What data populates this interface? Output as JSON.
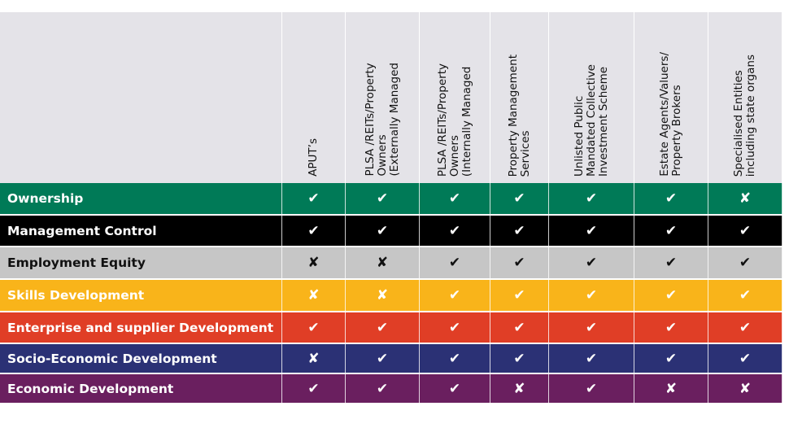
{
  "columns": [
    "APUT’s",
    "PLSA /REITs/Property\nOwners\n(Externally Managed",
    "PLSA /REITs/Property\nOwners\n(Internally Managed",
    "Property Management\nServices",
    "Unlisted Public\nMandated Collective\nInvestment Scheme",
    "Estate Agents/Valuers/\nProperty Brokers",
    "Specialised Entities\nincluding state organs"
  ],
  "rows": [
    {
      "label": "Ownership",
      "bg": "#007a57",
      "fg": "#ffffff",
      "marks": [
        "✔",
        "✔",
        "✔",
        "✔",
        "✔",
        "✔",
        "✘"
      ]
    },
    {
      "label": "Management Control",
      "bg": "#000000",
      "fg": "#ffffff",
      "marks": [
        "✔",
        "✔",
        "✔",
        "✔",
        "✔",
        "✔",
        "✔"
      ]
    },
    {
      "label": "Employment Equity",
      "bg": "#c6c6c6",
      "fg": "#111111",
      "marks": [
        "✘",
        "✘",
        "✔",
        "✔",
        "✔",
        "✔",
        "✔"
      ]
    },
    {
      "label": "Skills Development",
      "bg": "#f9b41a",
      "fg": "#ffffff",
      "marks": [
        "✘",
        "✘",
        "✔",
        "✔",
        "✔",
        "✔",
        "✔"
      ]
    },
    {
      "label": "Enterprise and supplier Development",
      "bg": "#e03e26",
      "fg": "#ffffff",
      "marks": [
        "✔",
        "✔",
        "✔",
        "✔",
        "✔",
        "✔",
        "✔"
      ]
    },
    {
      "label": "Socio-Economic Development",
      "bg": "#2b3175",
      "fg": "#ffffff",
      "marks": [
        "✘",
        "✔",
        "✔",
        "✔",
        "✔",
        "✔",
        "✔"
      ]
    },
    {
      "label": "Economic Development",
      "bg": "#6a1f5f",
      "fg": "#ffffff",
      "marks": [
        "✔",
        "✔",
        "✔",
        "✘",
        "✔",
        "✘",
        "✘"
      ]
    }
  ]
}
